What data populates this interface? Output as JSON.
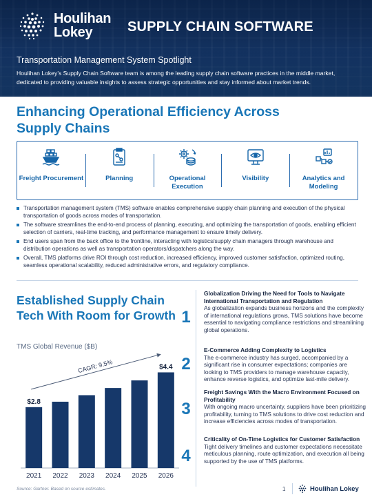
{
  "header": {
    "brand_line1": "Houlihan",
    "brand_line2": "Lokey",
    "report_title": "SUPPLY CHAIN SOFTWARE",
    "subtitle": "Transportation Management System Spotlight",
    "intro": "Houlihan Lokey’s Supply Chain Software team is among the leading supply chain software practices in the middle market, dedicated to providing valuable insights to assess strategic opportunities and stay informed about market trends."
  },
  "section1": {
    "title": "Enhancing Operational Efficiency Across Supply Chains",
    "icons": [
      {
        "label": "Freight Procurement",
        "icon": "ship-icon"
      },
      {
        "label": "Planning",
        "icon": "clipboard-icon"
      },
      {
        "label": "Operational Execution",
        "icon": "gears-icon"
      },
      {
        "label": "Visibility",
        "icon": "eye-icon"
      },
      {
        "label": "Analytics and Modeling",
        "icon": "analytics-icon"
      }
    ],
    "bullets": [
      "Transportation management system (TMS) software enables comprehensive supply chain planning and execution of the physical transportation of goods across modes of transportation.",
      "The software streamlines the end-to-end process of planning, executing, and optimizing the transportation of goods, enabling efficient selection of carriers, real-time tracking, and performance management to ensure timely delivery.",
      "End users span from the back office to the frontline, interacting with logistics/supply chain managers through warehouse and distribution operations as well as transportation operators/dispatchers along the way.",
      "Overall, TMS platforms drive ROI through cost reduction, increased efficiency, improved customer satisfaction, optimized routing, seamless operational scalability, reduced administrative errors, and regulatory compliance."
    ]
  },
  "section2": {
    "title": "Established Supply Chain Tech With Room for Growth",
    "chart_caption": "TMS Global Revenue ($B)",
    "source": "Source: Gartner. Based on source estimates.",
    "items": [
      {
        "num": "1",
        "head": "Globalization Driving the Need for Tools to Navigate International Transportation and Regulation",
        "body": "As globalization expands business horizons and the complexity of international regulations grows, TMS solutions have become essential to navigating compliance restrictions and streamlining global operations."
      },
      {
        "num": "2",
        "head": "E-Commerce Adding Complexity to Logistics",
        "body": "The e-commerce industry has surged, accompanied by a significant rise in consumer expectations; companies are looking to TMS providers to manage warehouse capacity, enhance reverse logistics, and optimize last-mile delivery."
      },
      {
        "num": "3",
        "head": "Freight Savings With the Macro Environment Focused on Profitability",
        "body": "With ongoing macro uncertainty, suppliers have been prioritizing profitability, turning to TMS solutions to drive cost reduction and increase efficiencies across modes of transportation."
      },
      {
        "num": "4",
        "head": "Criticality of On-Time Logistics for Customer Satisfaction",
        "body": "Tight delivery timelines and customer expectations necessitate meticulous planning, route optimization, and execution all being supported by the use of TMS platforms."
      }
    ]
  },
  "chart_data": {
    "type": "bar",
    "categories": [
      "2021",
      "2022",
      "2023",
      "2024",
      "2025",
      "2026"
    ],
    "values": [
      2.8,
      3.05,
      3.35,
      3.68,
      4.03,
      4.4
    ],
    "data_labels": {
      "2021": "$2.8",
      "2026": "$4.4"
    },
    "annotation": "CAGR: 9.5%",
    "bar_color": "#16386a",
    "ylim": [
      0,
      4.7
    ]
  },
  "footer": {
    "page": "1",
    "brand": "Houlihan Lokey"
  },
  "colors": {
    "navy": "#16386a",
    "accent_blue": "#1976b7"
  }
}
